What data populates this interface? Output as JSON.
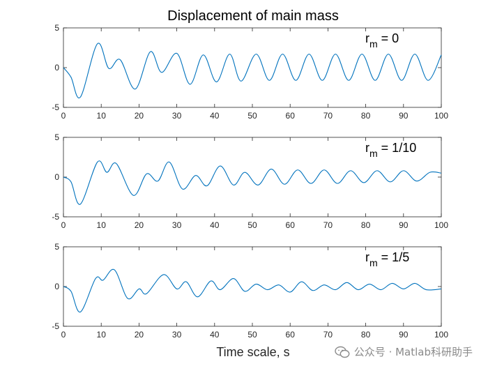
{
  "figure": {
    "title": "Displacement of main mass",
    "xlabel": "Time scale, s"
  },
  "watermark": {
    "text": "公众号 · Matlab科研助手"
  },
  "chart_data": [
    {
      "type": "line",
      "annotation": {
        "base": "r",
        "sub": "m",
        "rest": " = 0"
      },
      "xlim": [
        0,
        100
      ],
      "ylim": [
        -5,
        5
      ],
      "xticks": [
        "0",
        "10",
        "20",
        "30",
        "40",
        "50",
        "60",
        "70",
        "80",
        "90",
        "100"
      ],
      "yticks": [
        "5",
        "0",
        "-5"
      ],
      "series": [
        {
          "color": "#0072BD",
          "x": [
            0,
            2,
            4.5,
            9,
            12,
            15,
            19,
            23,
            26,
            30,
            33.5,
            37,
            40.5,
            44,
            47,
            51,
            54.5,
            58,
            61.5,
            65,
            68.5,
            72,
            75.5,
            79,
            82.5,
            86,
            89.5,
            93,
            96.5,
            100
          ],
          "y": [
            0,
            -1.2,
            -3.7,
            3.0,
            -0.1,
            1.0,
            -2.7,
            2.0,
            -0.6,
            1.8,
            -2.1,
            1.6,
            -1.8,
            1.7,
            -1.7,
            1.7,
            -1.6,
            1.7,
            -1.6,
            1.7,
            -1.6,
            1.7,
            -1.6,
            1.7,
            -1.6,
            1.7,
            -1.6,
            1.7,
            -1.6,
            1.6
          ]
        }
      ]
    },
    {
      "type": "line",
      "annotation": {
        "base": "r",
        "sub": "m",
        "rest": " = 1/10"
      },
      "xlim": [
        0,
        100
      ],
      "ylim": [
        -5,
        5
      ],
      "xticks": [
        "0",
        "10",
        "20",
        "30",
        "40",
        "50",
        "60",
        "70",
        "80",
        "90",
        "100"
      ],
      "yticks": [
        "5",
        "0",
        "-5"
      ],
      "series": [
        {
          "color": "#0072BD",
          "x": [
            0,
            2,
            4.5,
            9,
            11.5,
            14,
            18.5,
            22,
            25,
            28,
            31.5,
            35,
            38,
            41.5,
            45,
            48,
            51.5,
            55,
            58.5,
            62,
            65.5,
            69,
            72.5,
            76,
            79.5,
            83,
            86.5,
            90,
            93.5,
            97,
            100
          ],
          "y": [
            0,
            -0.6,
            -3.4,
            1.9,
            0.6,
            1.7,
            -2.3,
            0.4,
            -0.5,
            1.9,
            -1.5,
            0.2,
            -1.1,
            1.4,
            -1.0,
            0.6,
            -1.0,
            1.0,
            -0.9,
            0.9,
            -0.8,
            0.9,
            -0.8,
            0.8,
            -0.7,
            0.8,
            -0.6,
            0.8,
            -0.5,
            0.6,
            0.5
          ]
        }
      ]
    },
    {
      "type": "line",
      "annotation": {
        "base": "r",
        "sub": "m",
        "rest": " = 1/5"
      },
      "xlim": [
        0,
        100
      ],
      "ylim": [
        -5,
        5
      ],
      "xticks": [
        "0",
        "10",
        "20",
        "30",
        "40",
        "50",
        "60",
        "70",
        "80",
        "90",
        "100"
      ],
      "yticks": [
        "5",
        "0",
        "-5"
      ],
      "series": [
        {
          "color": "#0072BD",
          "x": [
            0,
            2,
            4.5,
            8.5,
            10.5,
            13.5,
            17,
            20,
            22,
            26.5,
            30,
            32.5,
            35.5,
            39,
            41.5,
            45,
            48,
            51,
            54,
            57,
            60,
            63,
            66,
            69,
            72,
            75,
            78,
            81,
            84,
            87,
            90,
            93,
            96,
            100
          ],
          "y": [
            0,
            -0.6,
            -3.2,
            1.0,
            0.8,
            2.1,
            -1.5,
            -0.3,
            -0.9,
            1.5,
            -0.3,
            0.6,
            -1.3,
            0.7,
            -0.4,
            1.0,
            -0.6,
            0.3,
            -0.4,
            0.2,
            -0.7,
            0.6,
            -0.5,
            0.2,
            -0.4,
            0.5,
            -0.4,
            0.3,
            -0.4,
            0.4,
            -0.3,
            0.4,
            -0.4,
            -0.3
          ]
        }
      ]
    }
  ]
}
